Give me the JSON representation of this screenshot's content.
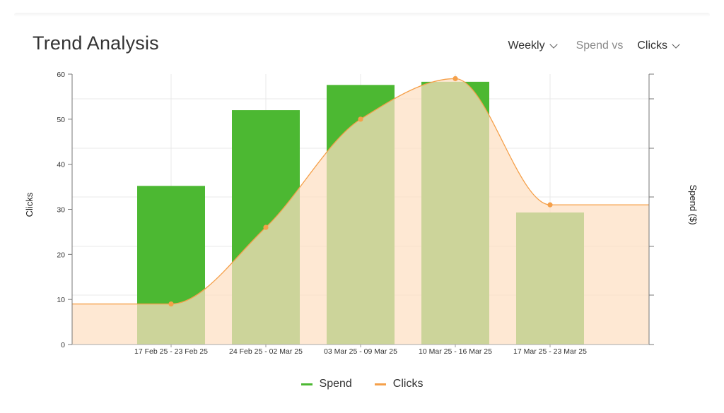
{
  "header": {
    "title": "Trend Analysis",
    "period_label": "Weekly",
    "compare_label": "Spend vs",
    "metric_label": "Clicks"
  },
  "colors": {
    "spend": "#4cb832",
    "clicks": "#f5a04a",
    "clicks_fill": "#fddfc2"
  },
  "legend": [
    {
      "label": "Spend",
      "color": "#4cb832"
    },
    {
      "label": "Clicks",
      "color": "#f5a04a"
    }
  ],
  "chart_data": {
    "type": "bar",
    "categories": [
      "17 Feb 25 - 23 Feb 25",
      "24 Feb 25 - 02 Mar 25",
      "03 Mar 25 - 09 Mar 25",
      "10 Mar 25 - 16 Mar 25",
      "17 Mar 25 - 23 Mar 25"
    ],
    "series": [
      {
        "name": "Spend",
        "type": "bar",
        "axis": "right",
        "values": [
          35.2,
          52,
          57.6,
          58.3,
          29.3
        ]
      },
      {
        "name": "Clicks",
        "type": "area",
        "axis": "left",
        "values": [
          9,
          26,
          50,
          59,
          31
        ]
      }
    ],
    "ylabel": "Clicks",
    "y2label": "Spend ($)",
    "ylim": [
      0,
      60
    ],
    "yticks": [
      0,
      10,
      20,
      30,
      40,
      50,
      60
    ],
    "grid": true,
    "legend_position": "bottom"
  }
}
